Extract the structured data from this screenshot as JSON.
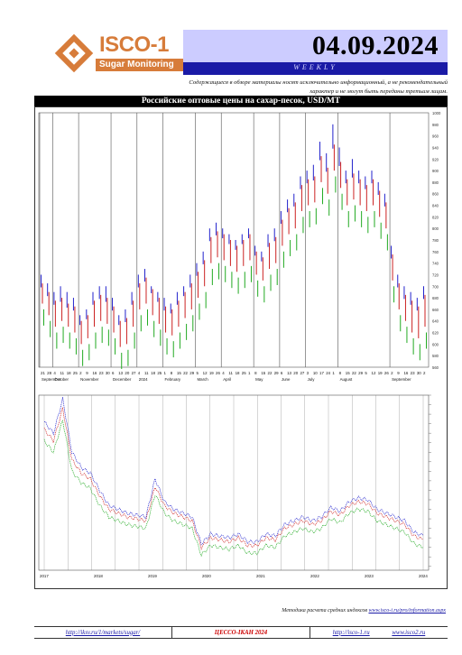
{
  "logo": {
    "main": "ISCO-1",
    "sub": "Sugar Monitoring"
  },
  "header": {
    "date": "04.09.2024",
    "frequency": "WEEKLY"
  },
  "disclaimer": "Содержащиеся в обзоре материалы носят исключительно информационный, а не рекомендательный характер и не могут быть переданы третьим лицам.",
  "title": "Российские оптовые цены на сахар-песок, USD/MT",
  "colors": {
    "high": "#2222cc",
    "avg": "#cc2222",
    "low": "#22aa22",
    "header_band": "#ccccff",
    "brand_bar": "#1a1aa6"
  },
  "chart_data": [
    {
      "type": "ohlc",
      "series": [],
      "categories": [
        "21",
        "28",
        "4",
        "11",
        "18",
        "25",
        "2",
        "9",
        "16",
        "23",
        "30",
        "6",
        "13",
        "20",
        "27",
        "4",
        "11",
        "18",
        "25",
        "1",
        "8",
        "15",
        "22",
        "29",
        "5",
        "12",
        "19",
        "26",
        "4",
        "11",
        "18",
        "25",
        "1",
        "8",
        "15",
        "22",
        "29",
        "6",
        "13",
        "20",
        "27",
        "3",
        "10",
        "17",
        "24",
        "1",
        "8",
        "15",
        "22",
        "29",
        "5",
        "12",
        "19",
        "26",
        "2",
        "9",
        "16",
        "23",
        "30",
        "2"
      ],
      "months": [
        "September",
        "October",
        "November",
        "December",
        "2024",
        "February",
        "March",
        "April",
        "May",
        "June",
        "July",
        "August",
        "September"
      ],
      "high": [
        720,
        705,
        690,
        700,
        690,
        680,
        650,
        660,
        690,
        700,
        700,
        680,
        650,
        660,
        690,
        720,
        730,
        700,
        690,
        680,
        670,
        690,
        700,
        720,
        740,
        760,
        800,
        810,
        800,
        790,
        780,
        790,
        800,
        770,
        760,
        790,
        800,
        830,
        850,
        860,
        890,
        900,
        910,
        950,
        930,
        980,
        940,
        900,
        920,
        900,
        890,
        900,
        880,
        860,
        770,
        720,
        700,
        690,
        680,
        700
      ],
      "avg": [
        690,
        675,
        660,
        665,
        655,
        650,
        625,
        635,
        660,
        670,
        665,
        650,
        625,
        630,
        660,
        690,
        700,
        680,
        665,
        650,
        645,
        660,
        675,
        690,
        710,
        730,
        770,
        780,
        775,
        765,
        755,
        765,
        775,
        745,
        735,
        760,
        770,
        800,
        820,
        830,
        860,
        870,
        875,
        910,
        890,
        930,
        900,
        870,
        880,
        870,
        860,
        870,
        850,
        830,
        740,
        690,
        670,
        660,
        650,
        670
      ],
      "low": [
        650,
        630,
        610,
        620,
        610,
        600,
        580,
        590,
        610,
        620,
        615,
        600,
        575,
        580,
        610,
        640,
        650,
        630,
        615,
        600,
        595,
        610,
        625,
        640,
        660,
        680,
        720,
        730,
        725,
        715,
        705,
        715,
        725,
        700,
        690,
        710,
        720,
        750,
        770,
        780,
        810,
        820,
        825,
        860,
        840,
        880,
        850,
        820,
        830,
        820,
        810,
        820,
        800,
        780,
        690,
        640,
        620,
        600,
        590,
        610
      ],
      "ylim": [
        560,
        1000
      ],
      "yticks": [
        "1000",
        "980",
        "960",
        "940",
        "920",
        "900",
        "880",
        "860",
        "840",
        "820",
        "800",
        "780",
        "760",
        "740",
        "720",
        "700",
        "680",
        "660",
        "640",
        "620",
        "600",
        "580",
        "560"
      ]
    },
    {
      "type": "line",
      "categories": [
        "2017",
        "2018",
        "2019",
        "2020",
        "2021",
        "2022",
        "2023",
        "2024"
      ],
      "series": [],
      "high": [
        1060,
        1000,
        1180,
        900,
        820,
        790,
        700,
        620,
        600,
        580,
        570,
        560,
        760,
        640,
        600,
        580,
        560,
        420,
        470,
        460,
        450,
        470,
        430,
        430,
        470,
        460,
        520,
        540,
        560,
        540,
        560,
        610,
        590,
        640,
        660,
        650,
        600,
        580,
        560,
        540,
        480,
        460
      ],
      "avg": [
        1020,
        960,
        1130,
        860,
        790,
        760,
        670,
        600,
        580,
        560,
        550,
        540,
        720,
        620,
        580,
        560,
        540,
        400,
        450,
        440,
        430,
        450,
        410,
        410,
        450,
        440,
        500,
        520,
        540,
        520,
        540,
        590,
        570,
        620,
        640,
        630,
        580,
        560,
        540,
        520,
        460,
        440
      ],
      "low": [
        960,
        900,
        1070,
        800,
        740,
        710,
        620,
        560,
        540,
        520,
        510,
        500,
        680,
        580,
        540,
        520,
        500,
        360,
        410,
        400,
        390,
        410,
        370,
        370,
        410,
        400,
        460,
        480,
        500,
        480,
        500,
        550,
        530,
        580,
        600,
        590,
        540,
        520,
        500,
        480,
        420,
        400
      ],
      "ylim": [
        280,
        1200
      ]
    }
  ],
  "footer": {
    "method_prefix": "Методика расчета средних индексов",
    "method_link": "www.isco-i.ru/pro/information.aspx",
    "link1": "http://iksv.ru/1/markets/sugar/",
    "brand": "ЦЕССО-IКАН 2024",
    "link2": "http://isco-1.ru",
    "link3": "www.isco2.ru"
  }
}
